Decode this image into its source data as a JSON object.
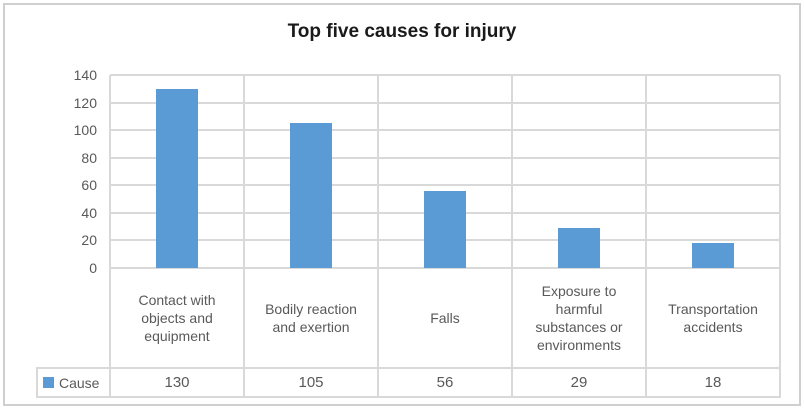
{
  "chart_data": {
    "type": "bar",
    "title": "Top five causes for injury",
    "categories": [
      "Contact with objects and equipment",
      "Bodily reaction and exertion",
      "Falls",
      "Exposure to harmful substances or environments",
      "Transportation accidents"
    ],
    "series": [
      {
        "name": "Cause",
        "values": [
          130,
          105,
          56,
          29,
          18
        ]
      }
    ],
    "xlabel": "",
    "ylabel": "",
    "ylim": [
      0,
      140
    ],
    "yticks": [
      140,
      120,
      100,
      80,
      60,
      40,
      20,
      0
    ],
    "grid": true,
    "legend_position": "bottom-left data-table row header",
    "data_table_shown": true,
    "colors": {
      "bar": "#5B9BD5",
      "gridline": "#D9D9D9",
      "axis_text": "#595959",
      "title_text": "#1A1A1A",
      "outer_border": "#D0CECE"
    }
  },
  "legend": {
    "label": "Cause",
    "swatch": "blue-square-icon"
  }
}
